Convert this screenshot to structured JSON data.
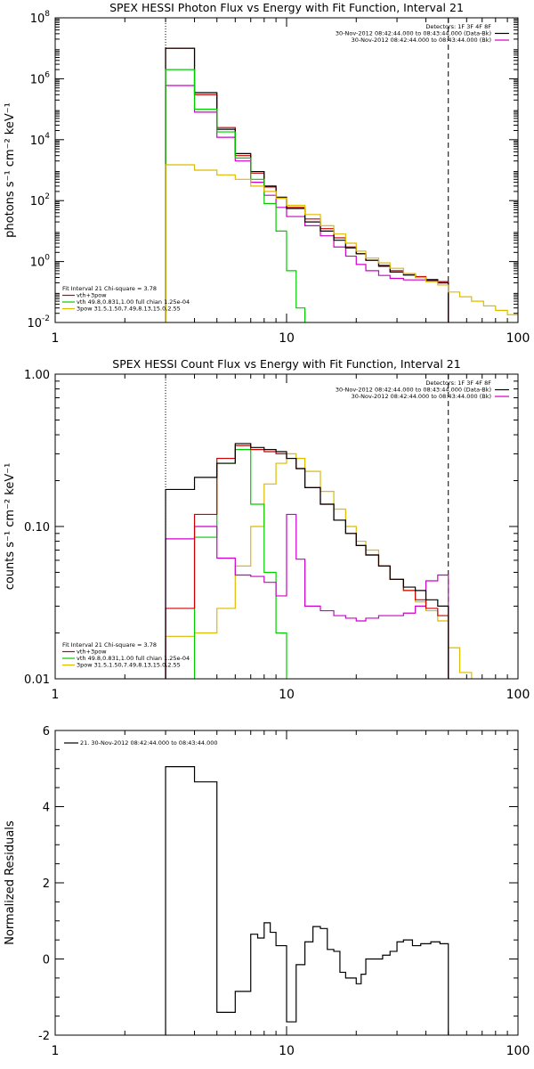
{
  "chart_data": [
    {
      "type": "line",
      "step": true,
      "title": "SPEX HESSI Photon Flux vs Energy with Fit Function, Interval 21",
      "xlabel": "",
      "ylabel": "photons s⁻¹ cm⁻² keV⁻¹",
      "xscale": "log",
      "yscale": "log",
      "xlim": [
        1,
        100
      ],
      "ylim": [
        0.01,
        100000000
      ],
      "x_ticks": [
        {
          "v": 1,
          "label": "1"
        },
        {
          "v": 10,
          "label": "10"
        },
        {
          "v": 100,
          "label": "100"
        }
      ],
      "y_ticks": [
        {
          "v": 0.01,
          "label": "10",
          "exp": "-2"
        },
        {
          "v": 1,
          "label": "10",
          "exp": "0"
        },
        {
          "v": 100,
          "label": "10",
          "exp": "2"
        },
        {
          "v": 10000,
          "label": "10",
          "exp": "4"
        },
        {
          "v": 1000000,
          "label": "10",
          "exp": "6"
        },
        {
          "v": 100000000,
          "label": "10",
          "exp": "8"
        }
      ],
      "vlines": [
        {
          "x": 3,
          "style": "dotted",
          "color": "#000000"
        },
        {
          "x": 50,
          "style": "dashed",
          "color": "#000000"
        }
      ],
      "legend_top": {
        "title": "Detectors: 1F 3F 4F 8F",
        "entries": [
          {
            "text": "30-Nov-2012 08:42:44.000 to 08:43:44.000 (Data-Bk)",
            "color": "#000000"
          },
          {
            "text": "30-Nov-2012 08:42:44.000 to 08:43:44.000 (Bk)",
            "color": "#cc00cc"
          }
        ]
      },
      "legend_bottom": {
        "title": "Fit Interval 21   Chi-square = 3.78",
        "entries": [
          {
            "text": "vth+3pow",
            "color": "#cc0000"
          },
          {
            "text": "vth 49.8,0.831,1.00  full chian 1.25e-04",
            "color": "#00cc00"
          },
          {
            "text": "3pow 31.5,1.50,7.49,8.13,15.0,2.55",
            "color": "#ddbb00"
          }
        ]
      },
      "series": [
        {
          "id": "bk",
          "color": "#cc00cc",
          "edges": [
            3,
            4,
            5,
            6,
            7,
            8,
            9,
            10,
            12,
            14,
            16,
            18,
            20,
            22,
            25,
            28,
            32,
            36,
            40,
            45,
            50
          ],
          "values": [
            600000,
            80000,
            12000,
            2000,
            400,
            150,
            60,
            30,
            15,
            7,
            3,
            1.5,
            0.8,
            0.5,
            0.35,
            0.28,
            0.25,
            0.25,
            0.25,
            0.2
          ]
        },
        {
          "id": "fit_total",
          "color": "#cc0000",
          "edges": [
            3,
            4,
            5,
            6,
            7,
            8,
            9,
            10,
            12,
            14,
            16,
            18,
            20,
            22,
            25,
            28,
            32,
            36,
            40,
            45,
            50
          ],
          "values": [
            10000000,
            300000,
            25000,
            3000,
            800,
            280,
            120,
            60,
            25,
            12,
            6,
            3,
            1.8,
            1.1,
            0.75,
            0.5,
            0.4,
            0.32,
            0.26,
            0.22
          ]
        },
        {
          "id": "data",
          "color": "#000000",
          "edges": [
            3,
            4,
            5,
            6,
            7,
            8,
            9,
            10,
            12,
            14,
            16,
            18,
            20,
            22,
            25,
            28,
            32,
            36,
            40,
            45,
            50
          ],
          "values": [
            10000000,
            350000,
            22000,
            3500,
            900,
            300,
            130,
            55,
            20,
            10,
            5,
            2.8,
            1.8,
            1.1,
            0.7,
            0.45,
            0.36,
            0.3,
            0.24,
            0.2
          ]
        },
        {
          "id": "thermal",
          "color": "#00cc00",
          "edges": [
            3,
            4,
            5,
            6,
            7,
            8,
            9,
            10,
            11,
            12
          ],
          "values": [
            2000000,
            100000,
            18000,
            2500,
            500,
            80,
            10,
            0.5,
            0.03
          ]
        },
        {
          "id": "power",
          "color": "#ddbb00",
          "edges": [
            3,
            4,
            5,
            6,
            7,
            8,
            9,
            10,
            12,
            14,
            16,
            18,
            20,
            22,
            25,
            28,
            32,
            36,
            40,
            45,
            50,
            56,
            63,
            71,
            80,
            90,
            100
          ],
          "values": [
            1500,
            1000,
            700,
            500,
            300,
            200,
            120,
            70,
            35,
            15,
            8,
            4,
            2.2,
            1.3,
            0.9,
            0.6,
            0.4,
            0.3,
            0.22,
            0.17,
            0.1,
            0.07,
            0.05,
            0.035,
            0.025,
            0.018
          ]
        }
      ]
    },
    {
      "type": "line",
      "step": true,
      "title": "SPEX HESSI Count Flux vs Energy with Fit Function, Interval 21",
      "xlabel": "",
      "ylabel": "counts s⁻¹ cm⁻² keV⁻¹",
      "xscale": "log",
      "yscale": "log",
      "xlim": [
        1,
        100
      ],
      "ylim": [
        0.01,
        1.0
      ],
      "x_ticks": [
        {
          "v": 1,
          "label": "1"
        },
        {
          "v": 10,
          "label": "10"
        },
        {
          "v": 100,
          "label": "100"
        }
      ],
      "y_ticks": [
        {
          "v": 0.01,
          "label": "0.01"
        },
        {
          "v": 0.1,
          "label": "0.10"
        },
        {
          "v": 1.0,
          "label": "1.00"
        }
      ],
      "vlines": [
        {
          "x": 3,
          "style": "dotted",
          "color": "#000000"
        },
        {
          "x": 50,
          "style": "dashed",
          "color": "#000000"
        }
      ],
      "legend_top": {
        "title": "Detectors: 1F 3F 4F 8F",
        "entries": [
          {
            "text": "30-Nov-2012 08:42:44.000 to 08:43:44.000 (Data-Bk)",
            "color": "#000000"
          },
          {
            "text": "30-Nov-2012 08:42:44.000 to 08:43:44.000 (Bk)",
            "color": "#cc00cc"
          }
        ]
      },
      "legend_bottom": {
        "title": "Fit Interval 21   Chi-square = 3.78",
        "entries": [
          {
            "text": "vth+3pow",
            "color": "#cc0000"
          },
          {
            "text": "vth 49.8,0.831,1.00  full chian 1.25e-04",
            "color": "#00cc00"
          },
          {
            "text": "3pow 31.5,1.50,7.49,8.13,15.0,2.55",
            "color": "#ddbb00"
          }
        ]
      },
      "series": [
        {
          "id": "power",
          "color": "#ddbb00",
          "edges": [
            3,
            4,
            5,
            6,
            7,
            8,
            9,
            10,
            11,
            12,
            14,
            16,
            18,
            20,
            22,
            25,
            28,
            32,
            36,
            40,
            45,
            50,
            56,
            63
          ],
          "values": [
            0.019,
            0.02,
            0.029,
            0.055,
            0.1,
            0.19,
            0.26,
            0.3,
            0.28,
            0.23,
            0.17,
            0.13,
            0.1,
            0.08,
            0.07,
            0.055,
            0.045,
            0.038,
            0.032,
            0.028,
            0.024,
            0.016,
            0.011
          ]
        },
        {
          "id": "thermal",
          "color": "#00cc00",
          "edges": [
            3,
            4,
            5,
            6,
            7,
            8,
            9,
            10
          ],
          "values": [
            0.0005,
            0.085,
            0.26,
            0.32,
            0.14,
            0.05,
            0.02
          ]
        },
        {
          "id": "bk",
          "color": "#cc00cc",
          "edges": [
            3,
            4,
            5,
            6,
            7,
            8,
            9,
            10,
            11,
            12,
            14,
            16,
            18,
            20,
            22,
            25,
            28,
            32,
            36,
            40,
            45,
            50
          ],
          "values": [
            0.083,
            0.1,
            0.062,
            0.048,
            0.047,
            0.043,
            0.035,
            0.12,
            0.061,
            0.03,
            0.028,
            0.026,
            0.025,
            0.024,
            0.025,
            0.026,
            0.026,
            0.027,
            0.03,
            0.044,
            0.048
          ]
        },
        {
          "id": "fit_total",
          "color": "#cc0000",
          "edges": [
            3,
            4,
            5,
            6,
            7,
            8,
            9,
            10,
            11,
            12,
            14,
            16,
            18,
            20,
            22,
            25,
            28,
            32,
            36,
            40,
            45,
            50
          ],
          "values": [
            0.029,
            0.12,
            0.28,
            0.34,
            0.32,
            0.31,
            0.3,
            0.28,
            0.24,
            0.18,
            0.14,
            0.11,
            0.09,
            0.075,
            0.065,
            0.055,
            0.045,
            0.038,
            0.033,
            0.029,
            0.026
          ]
        },
        {
          "id": "data",
          "color": "#000000",
          "edges": [
            3,
            4,
            5,
            6,
            7,
            8,
            9,
            10,
            11,
            12,
            14,
            16,
            18,
            20,
            22,
            25,
            28,
            32,
            36,
            40,
            45,
            50
          ],
          "values": [
            0.175,
            0.21,
            0.26,
            0.35,
            0.33,
            0.32,
            0.31,
            0.28,
            0.24,
            0.18,
            0.14,
            0.11,
            0.09,
            0.075,
            0.065,
            0.055,
            0.045,
            0.04,
            0.038,
            0.033,
            0.03
          ]
        }
      ]
    },
    {
      "type": "line",
      "step": true,
      "title": "",
      "xlabel": "",
      "ylabel": "Normalized Residuals",
      "xscale": "log",
      "yscale": "linear",
      "xlim": [
        1,
        100
      ],
      "ylim": [
        -2,
        6
      ],
      "x_ticks": [
        {
          "v": 1,
          "label": "1"
        },
        {
          "v": 10,
          "label": "10"
        },
        {
          "v": 100,
          "label": "100"
        }
      ],
      "y_ticks": [
        {
          "v": -2,
          "label": "-2"
        },
        {
          "v": 0,
          "label": "0"
        },
        {
          "v": 2,
          "label": "2"
        },
        {
          "v": 4,
          "label": "4"
        },
        {
          "v": 6,
          "label": "6"
        }
      ],
      "vlines": [],
      "legend_top": {
        "title": "",
        "entries": [
          {
            "text": "21. 30-Nov-2012 08:42:44.000 to 08:43:44.000",
            "color": "#000000"
          }
        ]
      },
      "legend_bottom": {
        "title": "",
        "entries": []
      },
      "series": [
        {
          "id": "residuals",
          "color": "#000000",
          "edges": [
            3,
            4,
            5,
            6,
            7,
            7.5,
            8,
            8.5,
            9,
            10,
            11,
            12,
            13,
            14,
            15,
            16,
            17,
            18,
            20,
            21,
            22,
            24,
            26,
            28,
            30,
            32,
            35,
            38,
            42,
            46,
            50
          ],
          "values": [
            5.05,
            4.65,
            -1.4,
            -0.85,
            0.65,
            0.55,
            0.95,
            0.7,
            0.35,
            -1.65,
            -0.15,
            0.45,
            0.85,
            0.8,
            0.25,
            0.2,
            -0.35,
            -0.5,
            -0.65,
            -0.4,
            0.0,
            0.0,
            0.1,
            0.2,
            0.45,
            0.5,
            0.35,
            0.4,
            0.45,
            0.4
          ]
        }
      ]
    }
  ]
}
